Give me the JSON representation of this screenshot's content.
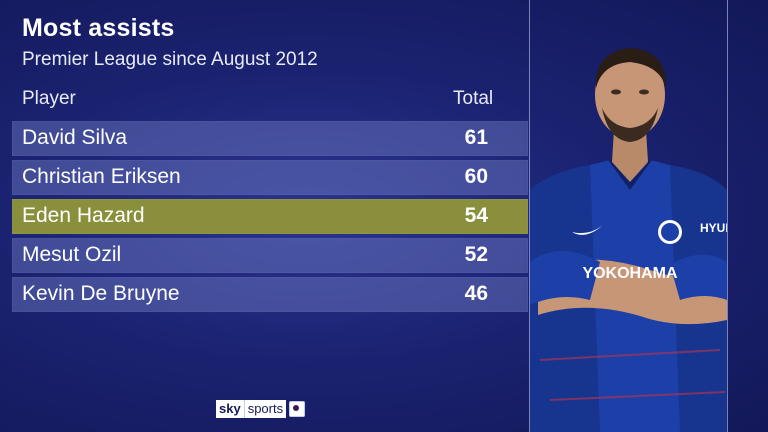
{
  "header": {
    "title": "Most assists",
    "subtitle": "Premier League since August 2012"
  },
  "columns": {
    "player": "Player",
    "total": "Total"
  },
  "rows": [
    {
      "player": "David Silva",
      "total": "61"
    },
    {
      "player": "Christian Eriksen",
      "total": "60"
    },
    {
      "player": "Eden Hazard",
      "total": "54"
    },
    {
      "player": "Mesut Ozil",
      "total": "52"
    },
    {
      "player": "Kevin De Bruyne",
      "total": "46"
    }
  ],
  "highlighted_row": 2,
  "photo": {
    "sponsor": "YOKOHAMA",
    "sleeve": "HYUN"
  },
  "logo": {
    "brand1": "sky",
    "brand2": "sports",
    "badge_icon": "premier-league-icon"
  },
  "colors": {
    "background": "#1b2372",
    "row": "#5a63b0",
    "highlight": "#8a8f3c",
    "shirt": "#1c3fa8"
  }
}
